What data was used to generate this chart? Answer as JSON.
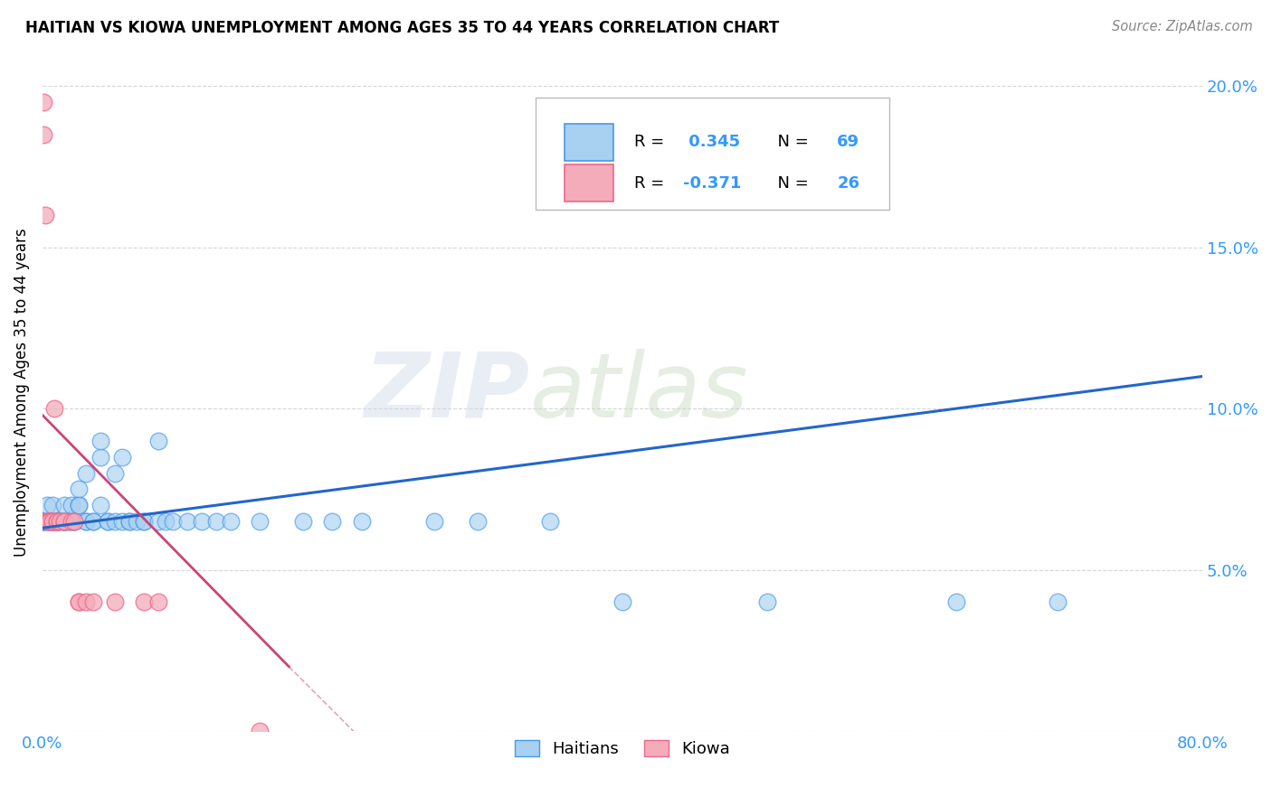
{
  "title": "HAITIAN VS KIOWA UNEMPLOYMENT AMONG AGES 35 TO 44 YEARS CORRELATION CHART",
  "source": "Source: ZipAtlas.com",
  "ylabel": "Unemployment Among Ages 35 to 44 years",
  "xlim": [
    0.0,
    0.8
  ],
  "ylim": [
    0.0,
    0.21
  ],
  "xticks": [
    0.0,
    0.1,
    0.2,
    0.3,
    0.4,
    0.5,
    0.6,
    0.7,
    0.8
  ],
  "xticklabels": [
    "0.0%",
    "",
    "",
    "",
    "",
    "",
    "",
    "",
    "80.0%"
  ],
  "yticks": [
    0.0,
    0.05,
    0.1,
    0.15,
    0.2
  ],
  "yticklabels": [
    "",
    "5.0%",
    "10.0%",
    "15.0%",
    "20.0%"
  ],
  "haitian_color": "#A8D0F0",
  "kiowa_color": "#F4ABBA",
  "haitian_edge_color": "#4499EE",
  "kiowa_edge_color": "#EE6688",
  "haitian_line_color": "#2266CC",
  "kiowa_line_color": "#CC4477",
  "haitian_R": 0.345,
  "haitian_N": 69,
  "kiowa_R": -0.371,
  "kiowa_N": 26,
  "watermark_zip": "ZIP",
  "watermark_atlas": "atlas",
  "background_color": "#FFFFFF",
  "grid_color": "#CCCCCC",
  "legend_label_haitian": "Haitians",
  "legend_label_kiowa": "Kiowa",
  "tick_color": "#3399FF",
  "haitian_x": [
    0.0,
    0.0,
    0.0,
    0.0,
    0.0,
    0.0,
    0.003,
    0.003,
    0.007,
    0.007,
    0.007,
    0.007,
    0.007,
    0.01,
    0.01,
    0.01,
    0.012,
    0.012,
    0.015,
    0.015,
    0.015,
    0.015,
    0.018,
    0.018,
    0.02,
    0.02,
    0.022,
    0.022,
    0.025,
    0.025,
    0.025,
    0.03,
    0.03,
    0.03,
    0.035,
    0.035,
    0.04,
    0.04,
    0.04,
    0.045,
    0.045,
    0.05,
    0.05,
    0.055,
    0.055,
    0.06,
    0.06,
    0.065,
    0.07,
    0.07,
    0.08,
    0.08,
    0.085,
    0.09,
    0.1,
    0.11,
    0.12,
    0.13,
    0.15,
    0.18,
    0.2,
    0.22,
    0.27,
    0.3,
    0.35,
    0.4,
    0.5,
    0.63,
    0.7
  ],
  "haitian_y": [
    0.065,
    0.065,
    0.065,
    0.065,
    0.065,
    0.065,
    0.065,
    0.07,
    0.065,
    0.065,
    0.065,
    0.065,
    0.07,
    0.065,
    0.065,
    0.065,
    0.065,
    0.065,
    0.065,
    0.065,
    0.065,
    0.07,
    0.065,
    0.065,
    0.065,
    0.07,
    0.065,
    0.065,
    0.07,
    0.07,
    0.075,
    0.065,
    0.065,
    0.08,
    0.065,
    0.065,
    0.07,
    0.085,
    0.09,
    0.065,
    0.065,
    0.065,
    0.08,
    0.065,
    0.085,
    0.065,
    0.065,
    0.065,
    0.065,
    0.065,
    0.065,
    0.09,
    0.065,
    0.065,
    0.065,
    0.065,
    0.065,
    0.065,
    0.065,
    0.065,
    0.065,
    0.065,
    0.065,
    0.065,
    0.065,
    0.04,
    0.04,
    0.04,
    0.04
  ],
  "kiowa_x": [
    0.001,
    0.001,
    0.002,
    0.003,
    0.003,
    0.004,
    0.005,
    0.005,
    0.007,
    0.007,
    0.008,
    0.01,
    0.01,
    0.012,
    0.015,
    0.015,
    0.02,
    0.022,
    0.025,
    0.025,
    0.03,
    0.035,
    0.05,
    0.07,
    0.08,
    0.15
  ],
  "kiowa_y": [
    0.195,
    0.185,
    0.16,
    0.065,
    0.065,
    0.065,
    0.065,
    0.065,
    0.065,
    0.065,
    0.1,
    0.065,
    0.065,
    0.065,
    0.065,
    0.065,
    0.065,
    0.065,
    0.04,
    0.04,
    0.04,
    0.04,
    0.04,
    0.04,
    0.04,
    0.0
  ]
}
